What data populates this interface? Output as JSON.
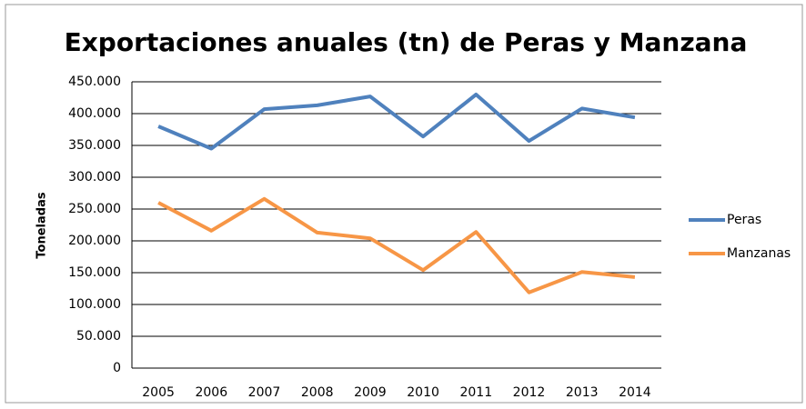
{
  "chart_data": {
    "type": "line",
    "title": "Exportaciones anuales (tn) de Peras y Manzana",
    "y_label": "Toneladas",
    "categories": [
      "2005",
      "2006",
      "2007",
      "2008",
      "2009",
      "2010",
      "2011",
      "2012",
      "2013",
      "2014"
    ],
    "series": [
      {
        "name": "Peras",
        "color": "#4f81bd",
        "values": [
          380000,
          345000,
          407000,
          413000,
          427000,
          364000,
          430000,
          357000,
          408000,
          394000
        ]
      },
      {
        "name": "Manzanas",
        "color": "#f79646",
        "values": [
          260000,
          216000,
          266000,
          213000,
          204000,
          154000,
          214000,
          119000,
          151000,
          143000
        ]
      }
    ],
    "ylim": [
      0,
      450000
    ],
    "yticks": [
      0,
      {
        "value": 50000,
        "label": "50.000"
      },
      {
        "value": 100000,
        "label": "100.000"
      },
      {
        "value": 150000,
        "label": "150.000"
      },
      {
        "value": 200000,
        "label": "200.000"
      },
      {
        "value": 250000,
        "label": "250.000"
      },
      {
        "value": 300000,
        "label": "300.000"
      },
      {
        "value": 350000,
        "label": "350.000"
      },
      {
        "value": 400000,
        "label": "400.000"
      },
      {
        "value": 450000,
        "label": "450.000"
      }
    ],
    "grid": true,
    "legend": "right"
  }
}
